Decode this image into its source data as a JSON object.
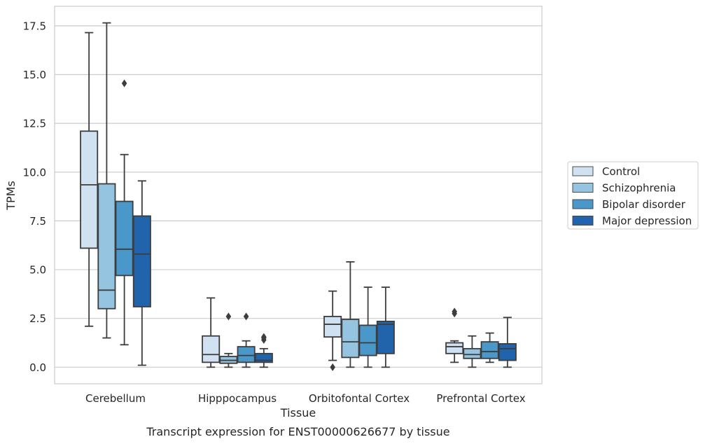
{
  "caption": "Transcript expression for ENST00000626677 by tissue",
  "chart_data": {
    "type": "boxplot",
    "xlabel": "Tissue",
    "ylabel": "TPMs",
    "ylim": [
      -0.85,
      18.5
    ],
    "yticks": [
      0.0,
      2.5,
      5.0,
      7.5,
      10.0,
      12.5,
      15.0,
      17.5
    ],
    "ytick_labels": [
      "0.0",
      "2.5",
      "5.0",
      "7.5",
      "10.0",
      "12.5",
      "15.0",
      "17.5"
    ],
    "grid": "horizontal",
    "legend_position": "right",
    "categories": [
      "Cerebellum",
      "Hipppocampus",
      "Orbitofontal Cortex",
      "Prefrontal Cortex"
    ],
    "series": [
      {
        "name": "Control",
        "color": "#d0e1f1",
        "boxes": [
          {
            "whislo": 2.1,
            "q1": 6.1,
            "med": 9.35,
            "q3": 12.1,
            "whishi": 17.15,
            "fliers": []
          },
          {
            "whislo": 0.0,
            "q1": 0.25,
            "med": 0.65,
            "q3": 1.6,
            "whishi": 3.55,
            "fliers": []
          },
          {
            "whislo": 0.35,
            "q1": 1.55,
            "med": 2.2,
            "q3": 2.6,
            "whishi": 3.9,
            "fliers": [
              0.0
            ]
          },
          {
            "whislo": 0.25,
            "q1": 0.7,
            "med": 1.05,
            "q3": 1.25,
            "whishi": 1.35,
            "fliers": [
              2.75,
              2.85
            ]
          }
        ]
      },
      {
        "name": "Schizophrenia",
        "color": "#94c4df",
        "boxes": [
          {
            "whislo": 1.5,
            "q1": 3.0,
            "med": 3.95,
            "q3": 9.4,
            "whishi": 17.65,
            "fliers": []
          },
          {
            "whislo": 0.0,
            "q1": 0.2,
            "med": 0.35,
            "q3": 0.55,
            "whishi": 0.7,
            "fliers": [
              2.6
            ]
          },
          {
            "whislo": 0.0,
            "q1": 0.5,
            "med": 1.3,
            "q3": 2.45,
            "whishi": 5.4,
            "fliers": []
          },
          {
            "whislo": 0.0,
            "q1": 0.45,
            "med": 0.65,
            "q3": 0.95,
            "whishi": 1.6,
            "fliers": []
          }
        ]
      },
      {
        "name": "Bipolar disorder",
        "color": "#4a98c9",
        "boxes": [
          {
            "whislo": 1.15,
            "q1": 4.7,
            "med": 6.05,
            "q3": 8.5,
            "whishi": 10.9,
            "fliers": [
              14.55
            ]
          },
          {
            "whislo": 0.0,
            "q1": 0.25,
            "med": 0.6,
            "q3": 1.05,
            "whishi": 1.35,
            "fliers": [
              2.6
            ]
          },
          {
            "whislo": 0.0,
            "q1": 0.6,
            "med": 1.25,
            "q3": 2.15,
            "whishi": 4.1,
            "fliers": []
          },
          {
            "whislo": 0.25,
            "q1": 0.45,
            "med": 0.8,
            "q3": 1.3,
            "whishi": 1.75,
            "fliers": []
          }
        ]
      },
      {
        "name": "Major depression",
        "color": "#2164ab",
        "boxes": [
          {
            "whislo": 0.1,
            "q1": 3.1,
            "med": 5.8,
            "q3": 7.75,
            "whishi": 9.55,
            "fliers": []
          },
          {
            "whislo": 0.0,
            "q1": 0.25,
            "med": 0.35,
            "q3": 0.7,
            "whishi": 0.95,
            "fliers": [
              1.4,
              1.5,
              1.55
            ]
          },
          {
            "whislo": 0.0,
            "q1": 0.7,
            "med": 2.2,
            "q3": 2.35,
            "whishi": 4.1,
            "fliers": []
          },
          {
            "whislo": 0.0,
            "q1": 0.35,
            "med": 0.95,
            "q3": 1.2,
            "whishi": 2.55,
            "fliers": []
          }
        ]
      }
    ]
  }
}
